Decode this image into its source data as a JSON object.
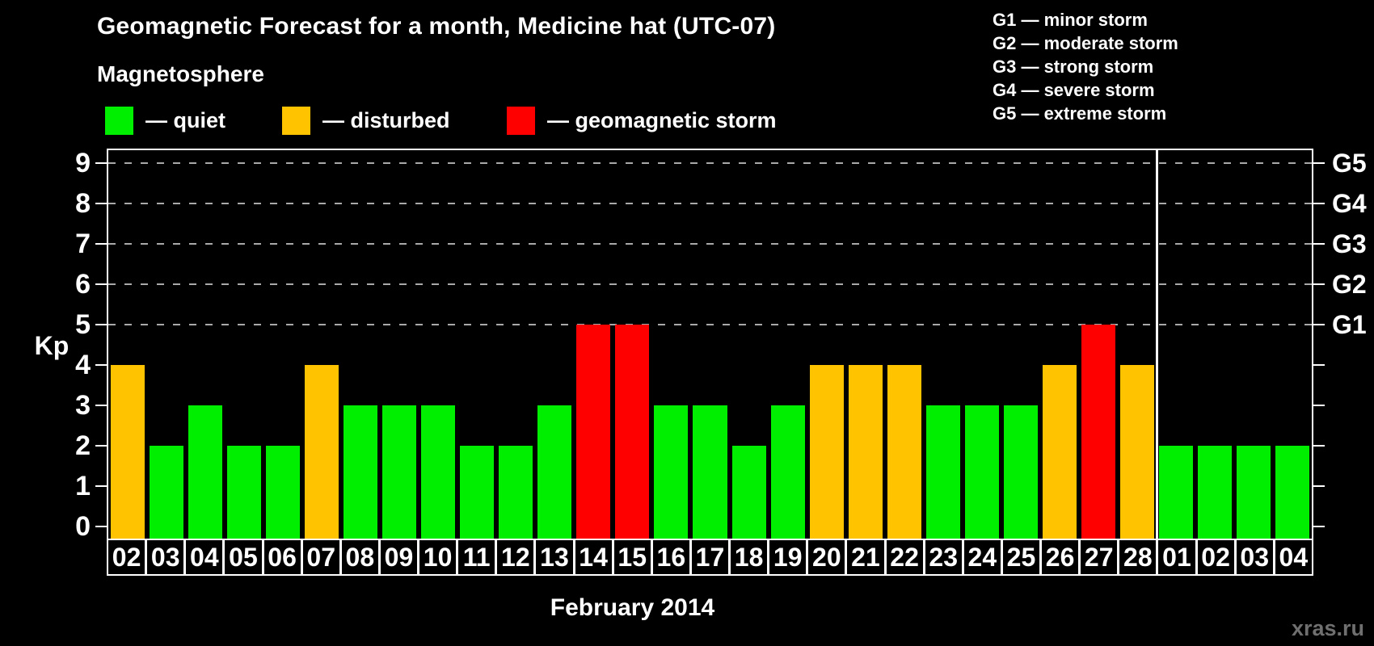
{
  "header": {
    "title": "Geomagnetic Forecast for a month, Medicine hat (UTC-07)",
    "legend_title": "Magnetosphere",
    "legend_items": [
      {
        "status": "quiet",
        "color": "#00ee00",
        "label": "— quiet"
      },
      {
        "status": "disturbed",
        "color": "#ffc300",
        "label": "— disturbed"
      },
      {
        "status": "storm",
        "color": "#ff0000",
        "label": "— geomagnetic storm"
      }
    ],
    "storm_scale_legend": [
      "G1 — minor storm",
      "G2 — moderate storm",
      "G3 — strong storm",
      "G4 — severe storm",
      "G5 — extreme storm"
    ]
  },
  "chart_data": {
    "type": "bar",
    "title": "Geomagnetic Forecast for a month, Medicine hat (UTC-07)",
    "categories": [
      "02",
      "03",
      "04",
      "05",
      "06",
      "07",
      "08",
      "09",
      "10",
      "11",
      "12",
      "13",
      "14",
      "15",
      "16",
      "17",
      "18",
      "19",
      "20",
      "21",
      "22",
      "23",
      "24",
      "25",
      "26",
      "27",
      "28",
      "01",
      "02",
      "03",
      "04"
    ],
    "values": [
      4,
      2,
      3,
      2,
      2,
      4,
      3,
      3,
      3,
      2,
      2,
      3,
      5,
      5,
      3,
      3,
      2,
      3,
      4,
      4,
      4,
      3,
      3,
      3,
      4,
      5,
      4,
      2,
      2,
      2,
      2
    ],
    "statuses": [
      "disturbed",
      "quiet",
      "quiet",
      "quiet",
      "quiet",
      "disturbed",
      "quiet",
      "quiet",
      "quiet",
      "quiet",
      "quiet",
      "quiet",
      "storm",
      "storm",
      "quiet",
      "quiet",
      "quiet",
      "quiet",
      "disturbed",
      "disturbed",
      "disturbed",
      "quiet",
      "quiet",
      "quiet",
      "disturbed",
      "storm",
      "disturbed",
      "quiet",
      "quiet",
      "quiet",
      "quiet"
    ],
    "colors": {
      "quiet": "#00ee00",
      "disturbed": "#ffc300",
      "storm": "#ff0000"
    },
    "ylabel": "Kp",
    "ylim": [
      0,
      9
    ],
    "yticks": [
      0,
      1,
      2,
      3,
      4,
      5,
      6,
      7,
      8,
      9
    ],
    "grid_levels": [
      5,
      6,
      7,
      8,
      9
    ],
    "grid_style": "dashed gray horizontal lines at Kp 5-9",
    "right_axis_labels": [
      {
        "level": 5,
        "label": "G1"
      },
      {
        "level": 6,
        "label": "G2"
      },
      {
        "level": 7,
        "label": "G3"
      },
      {
        "level": 8,
        "label": "G4"
      },
      {
        "level": 9,
        "label": "G5"
      }
    ],
    "month_bars_count": 27,
    "next_month_bars_count": 4,
    "xlabel": "February 2014",
    "legend_position": "top-left"
  },
  "x_axis": {
    "month_label": "February 2014"
  },
  "y_axis": {
    "label": "Kp"
  },
  "watermark": "xras.ru"
}
